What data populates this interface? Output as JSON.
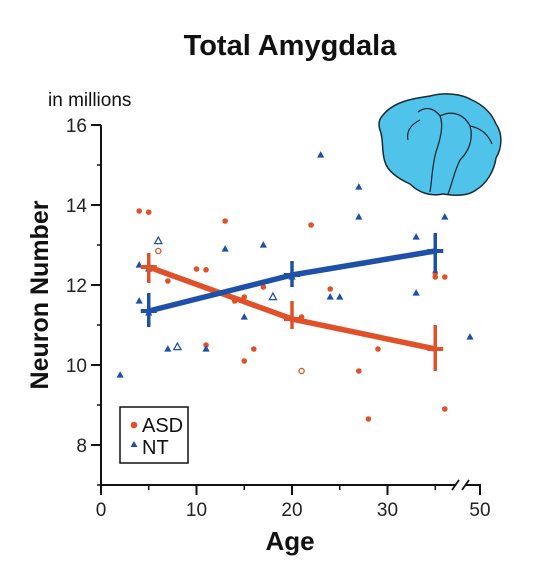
{
  "chart_data": {
    "type": "scatter",
    "title": "Total Amygdala",
    "units_label": "in millions",
    "xlabel": "Age",
    "ylabel": "Neuron Number",
    "xlim": [
      0,
      50
    ],
    "ylim": [
      7,
      16
    ],
    "axis_break": "x between 35 and 50",
    "x_ticks": [
      0,
      10,
      20,
      30,
      50
    ],
    "y_ticks": [
      8,
      10,
      12,
      14,
      16
    ],
    "grid": false,
    "legend_position": "bottom-left",
    "inset_icon": "amygdala-brain-shape",
    "colors": {
      "ASD": "#e0512a",
      "NT": "#1e50a8",
      "inset": "#4fc3ea"
    },
    "series": [
      {
        "name": "ASD",
        "marker": "circle",
        "color": "#e0512a",
        "points": [
          [
            4,
            13.85
          ],
          [
            5,
            13.82
          ],
          [
            6,
            12.85
          ],
          [
            7,
            12.1
          ],
          [
            10,
            12.4
          ],
          [
            11,
            12.38
          ],
          [
            11,
            10.5
          ],
          [
            13,
            13.6
          ],
          [
            14,
            11.6
          ],
          [
            15,
            10.1
          ],
          [
            15,
            11.7
          ],
          [
            16,
            10.4
          ],
          [
            17,
            11.95
          ],
          [
            21,
            11.2
          ],
          [
            22,
            13.5
          ],
          [
            24,
            11.9
          ],
          [
            27,
            9.85
          ],
          [
            28,
            8.65
          ],
          [
            29,
            10.4
          ],
          [
            35,
            12.3
          ],
          [
            35,
            12.2
          ],
          [
            36,
            8.9
          ],
          [
            36,
            12.2
          ]
        ],
        "hollow_points": [
          [
            6,
            12.85
          ],
          [
            21,
            9.85
          ]
        ],
        "trend": [
          [
            5,
            12.45
          ],
          [
            20,
            11.15
          ],
          [
            35,
            10.4
          ]
        ],
        "error_bars": [
          [
            5,
            12.05,
            12.8
          ],
          [
            20,
            10.9,
            11.6
          ],
          [
            35,
            9.85,
            11.0
          ]
        ]
      },
      {
        "name": "NT",
        "marker": "triangle",
        "color": "#1e50a8",
        "points": [
          [
            2,
            9.75
          ],
          [
            4,
            12.5
          ],
          [
            4,
            11.6
          ],
          [
            5,
            11.3
          ],
          [
            5,
            12.4
          ],
          [
            7,
            10.4
          ],
          [
            11,
            10.4
          ],
          [
            13,
            12.9
          ],
          [
            15,
            11.2
          ],
          [
            17,
            13.0
          ],
          [
            20,
            12.2
          ],
          [
            23,
            15.25
          ],
          [
            24,
            11.7
          ],
          [
            25,
            11.7
          ],
          [
            27,
            14.45
          ],
          [
            27,
            13.7
          ],
          [
            33,
            11.8
          ],
          [
            33,
            13.2
          ],
          [
            36,
            13.7
          ],
          [
            49,
            10.7
          ]
        ],
        "hollow_points": [
          [
            6,
            13.1
          ],
          [
            8,
            10.45
          ],
          [
            18,
            11.7
          ]
        ],
        "trend": [
          [
            5,
            11.35
          ],
          [
            20,
            12.25
          ],
          [
            35,
            12.85
          ]
        ],
        "error_bars": [
          [
            5,
            10.95,
            11.8
          ],
          [
            20,
            11.95,
            12.6
          ],
          [
            35,
            12.3,
            13.3
          ]
        ]
      }
    ]
  }
}
